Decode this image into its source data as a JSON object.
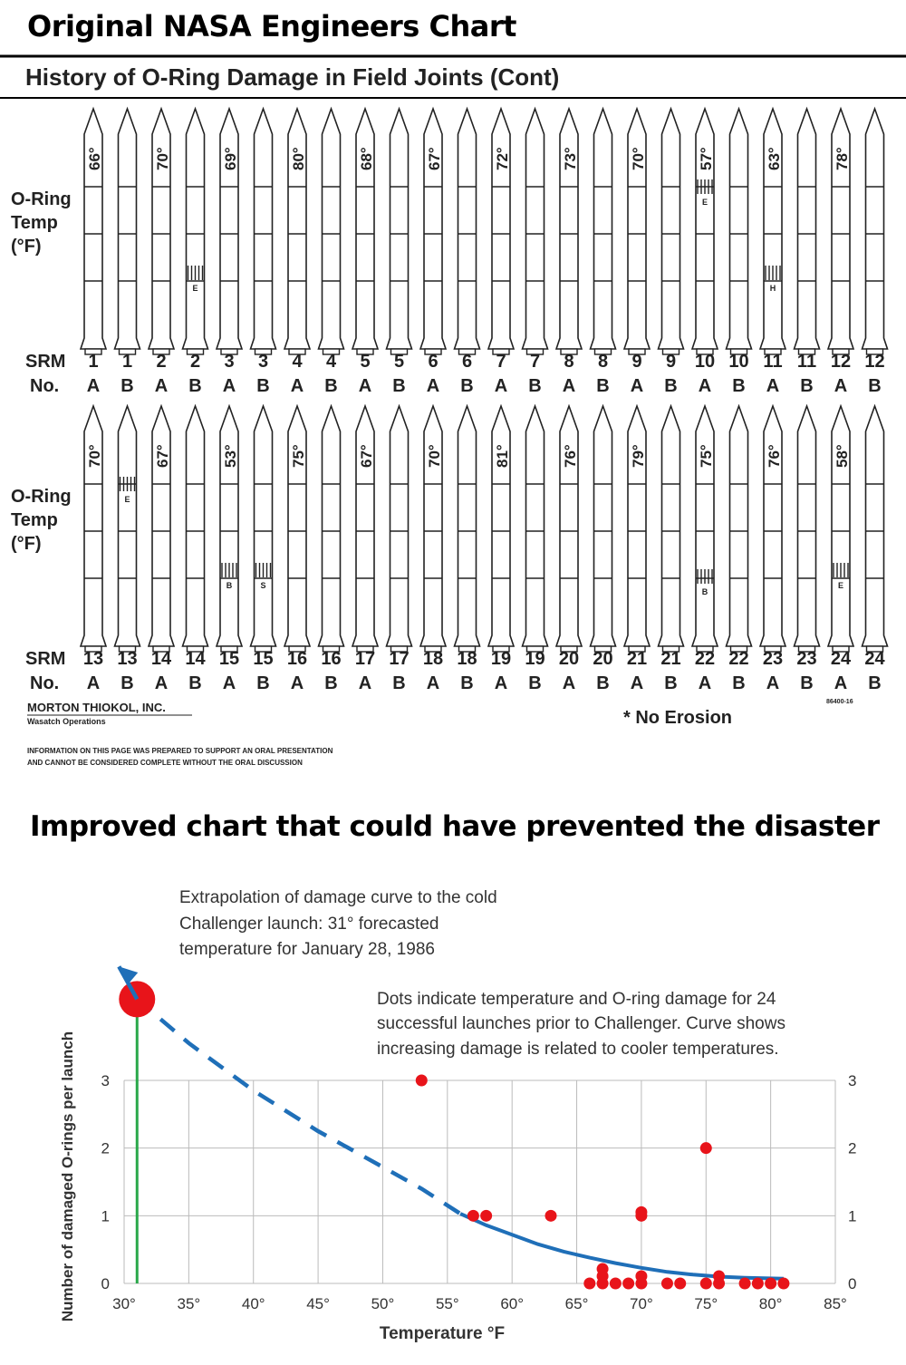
{
  "headings": {
    "top": "Original NASA Engineers Chart",
    "bottom": "Improved chart that could have prevented the disaster"
  },
  "colors": {
    "dot": "#e8141a",
    "curve": "#1f6fb8",
    "launch_line": "#2aa84a",
    "grid": "#bbbbbb"
  },
  "nasa_chart": {
    "title": "History of O-Ring Damage in Field Joints (Cont)",
    "temp_label": [
      "O-Ring",
      "Temp",
      "(°F)"
    ],
    "srm_label": "SRM",
    "no_label": "No.",
    "company": "MORTON THIOKOL, INC.",
    "division": "Wasatch Operations",
    "footnote": [
      "INFORMATION ON THIS PAGE WAS PREPARED TO SUPPORT AN ORAL PRESENTATION",
      "AND CANNOT BE CONSIDERED COMPLETE WITHOUT THE ORAL DISCUSSION"
    ],
    "doc_code": "86400-16",
    "legend": "* No Erosion",
    "rows": [
      {
        "flights": [
          {
            "num": "1",
            "temp": "66°"
          },
          {
            "num": "2",
            "temp": "70°"
          },
          {
            "num": "3",
            "temp": "69°"
          },
          {
            "num": "4",
            "temp": "80°"
          },
          {
            "num": "5",
            "temp": "68°"
          },
          {
            "num": "6",
            "temp": "67°"
          },
          {
            "num": "7",
            "temp": "72°"
          },
          {
            "num": "8",
            "temp": "73°"
          },
          {
            "num": "9",
            "temp": "70°"
          },
          {
            "num": "10",
            "temp": "57°"
          },
          {
            "num": "11",
            "temp": "63°"
          },
          {
            "num": "12",
            "temp": "78°"
          }
        ]
      },
      {
        "flights": [
          {
            "num": "13",
            "temp": "70°"
          },
          {
            "num": "14",
            "temp": "67°"
          },
          {
            "num": "15",
            "temp": "53°"
          },
          {
            "num": "16",
            "temp": "75°"
          },
          {
            "num": "17",
            "temp": "67°"
          },
          {
            "num": "18",
            "temp": "70°"
          },
          {
            "num": "19",
            "temp": "81°"
          },
          {
            "num": "20",
            "temp": "76°"
          },
          {
            "num": "21",
            "temp": "79°"
          },
          {
            "num": "22",
            "temp": "75°"
          },
          {
            "num": "23",
            "temp": "76°"
          },
          {
            "num": "24",
            "temp": "58°"
          }
        ]
      }
    ],
    "side_labels": [
      "A",
      "B"
    ],
    "damage_marks": [
      {
        "flight": "2",
        "side": "B",
        "letter": "E"
      },
      {
        "flight": "10",
        "side": "A",
        "letter": "E"
      },
      {
        "flight": "11",
        "side": "A",
        "letter": "H"
      },
      {
        "flight": "13",
        "side": "B",
        "letter": "E"
      },
      {
        "flight": "15",
        "side": "A",
        "letter": "B"
      },
      {
        "flight": "15",
        "side": "B",
        "letter": "S"
      },
      {
        "flight": "22",
        "side": "A",
        "letter": "B"
      },
      {
        "flight": "24",
        "side": "A",
        "letter": "E"
      }
    ]
  },
  "annotations": {
    "extrapolation": [
      "Extrapolation of damage curve to the cold",
      "Challenger launch: 31° forecasted",
      "temperature for January 28, 1986"
    ],
    "dots": [
      "Dots indicate temperature and O-ring damage for 24",
      "successful launches prior to Challenger. Curve shows",
      "increasing damage is related to cooler temperatures."
    ]
  },
  "chart_data": {
    "type": "scatter",
    "title": "Improved chart that could have prevented the disaster",
    "xlabel": "Temperature °F",
    "ylabel": "Number of damaged O-rings per launch",
    "xlim": [
      30,
      85
    ],
    "ylim": [
      0,
      3
    ],
    "x_ticks": [
      "30°",
      "35°",
      "40°",
      "45°",
      "50°",
      "55°",
      "60°",
      "65°",
      "70°",
      "75°",
      "80°",
      "85°"
    ],
    "y_ticks": [
      "0",
      "1",
      "2",
      "3"
    ],
    "grid": true,
    "points": [
      {
        "x": 53,
        "y": 3
      },
      {
        "x": 57,
        "y": 1
      },
      {
        "x": 58,
        "y": 1
      },
      {
        "x": 63,
        "y": 1
      },
      {
        "x": 70,
        "y": 1
      },
      {
        "x": 70,
        "y": 1
      },
      {
        "x": 75,
        "y": 2
      },
      {
        "x": 66,
        "y": 0
      },
      {
        "x": 67,
        "y": 0
      },
      {
        "x": 67,
        "y": 0
      },
      {
        "x": 67,
        "y": 0
      },
      {
        "x": 68,
        "y": 0
      },
      {
        "x": 69,
        "y": 0
      },
      {
        "x": 70,
        "y": 0
      },
      {
        "x": 70,
        "y": 0
      },
      {
        "x": 72,
        "y": 0
      },
      {
        "x": 73,
        "y": 0
      },
      {
        "x": 75,
        "y": 0
      },
      {
        "x": 76,
        "y": 0
      },
      {
        "x": 76,
        "y": 0
      },
      {
        "x": 78,
        "y": 0
      },
      {
        "x": 79,
        "y": 0
      },
      {
        "x": 80,
        "y": 0
      },
      {
        "x": 81,
        "y": 0
      }
    ],
    "challenger": {
      "x": 31,
      "y": 4.2
    },
    "curve_solid": [
      [
        56,
        1.03
      ],
      [
        58,
        0.86
      ],
      [
        60,
        0.72
      ],
      [
        62,
        0.58
      ],
      [
        64,
        0.47
      ],
      [
        66,
        0.38
      ],
      [
        68,
        0.3
      ],
      [
        70,
        0.23
      ],
      [
        72,
        0.17
      ],
      [
        74,
        0.13
      ],
      [
        76,
        0.1
      ],
      [
        78,
        0.085
      ],
      [
        81,
        0.07
      ]
    ],
    "curve_dashed": [
      [
        31,
        4.2
      ],
      [
        35,
        3.55
      ],
      [
        40,
        2.85
      ],
      [
        45,
        2.25
      ],
      [
        50,
        1.72
      ],
      [
        53,
        1.4
      ],
      [
        56,
        1.03
      ]
    ]
  }
}
